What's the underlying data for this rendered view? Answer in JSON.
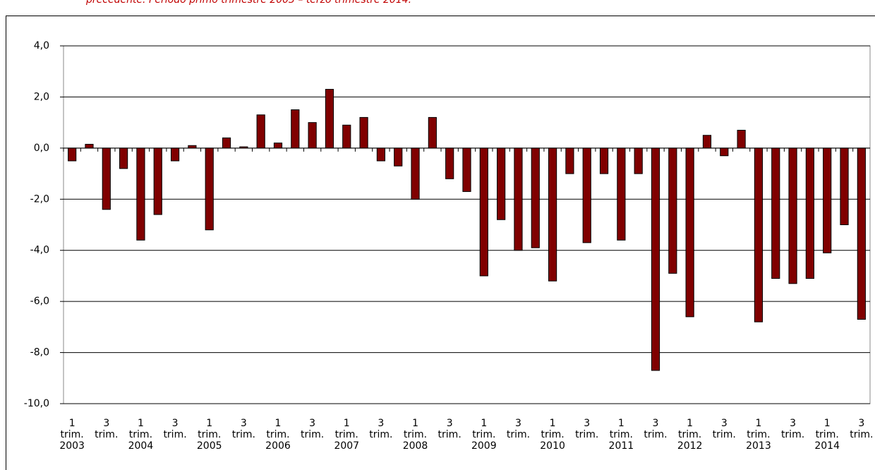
{
  "chart_data": {
    "type": "bar",
    "title": "precedente. Periodo primo trimestre 2003 – terzo trimestre 2014.",
    "categories": [
      "1 trim. 2003",
      null,
      "3 trim.",
      null,
      "1 trim. 2004",
      null,
      "3 trim.",
      null,
      "1 trim. 2005",
      null,
      "3 trim.",
      null,
      "1 trim. 2006",
      null,
      "3 trim.",
      null,
      "1 trim. 2007",
      null,
      "3 trim.",
      null,
      "1 trim. 2008",
      null,
      "3 trim.",
      null,
      "1 trim. 2009",
      null,
      "3 trim.",
      null,
      "1 trim. 2010",
      null,
      "3 trim.",
      null,
      "1 trim. 2011",
      null,
      "3 trim.",
      null,
      "1 trim. 2012",
      null,
      "3 trim.",
      null,
      "1 trim. 2013",
      null,
      "3 trim.",
      null,
      "1 trim. 2014",
      null,
      "3 trim."
    ],
    "values": [
      -0.5,
      0.15,
      -2.4,
      -0.8,
      -3.6,
      -2.6,
      -0.5,
      0.1,
      -3.2,
      0.4,
      0.05,
      1.3,
      0.2,
      1.5,
      1.0,
      2.3,
      0.9,
      1.2,
      -0.5,
      -0.7,
      -2.0,
      1.2,
      -1.2,
      -1.7,
      -5.0,
      -2.8,
      -4.0,
      -3.9,
      -5.2,
      -1.0,
      -3.7,
      -1.0,
      -3.6,
      -1.0,
      -8.7,
      -4.9,
      -6.6,
      0.5,
      -0.3,
      0.7,
      -6.8,
      -5.1,
      -5.3,
      -5.1,
      -4.1,
      -3.0,
      -6.7
    ],
    "color": "#800000",
    "ylim": [
      -10,
      4
    ],
    "yticks": [
      {
        "value": -10,
        "label": "-10,0"
      },
      {
        "value": -8,
        "label": "-8,0"
      },
      {
        "value": -6,
        "label": "-6,0"
      },
      {
        "value": -4,
        "label": "-4,0"
      },
      {
        "value": -2,
        "label": "-2,0"
      },
      {
        "value": 0,
        "label": "0,0"
      },
      {
        "value": 2,
        "label": "2,0"
      },
      {
        "value": 4,
        "label": "4,0"
      }
    ],
    "grid": true
  }
}
